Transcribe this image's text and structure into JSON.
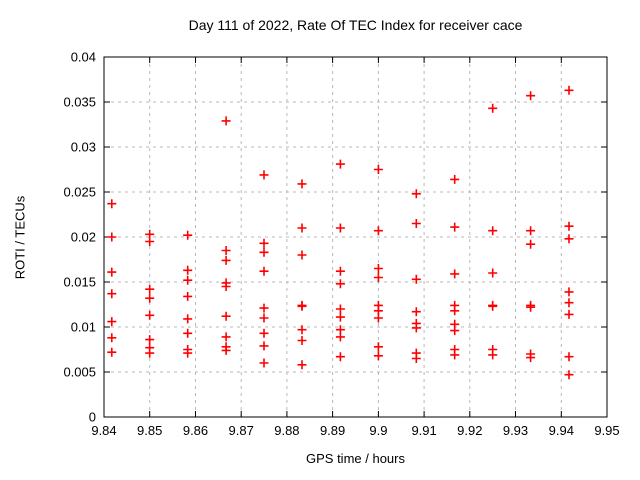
{
  "figure": {
    "background": "#ffffff"
  },
  "chart_data": {
    "type": "scatter",
    "title": "Day 111 of 2022, Rate Of TEC Index for receiver cace",
    "xlabel": "GPS time / hours",
    "ylabel": "ROTI / TECUs",
    "xlim": [
      9.84,
      9.95
    ],
    "ylim": [
      0,
      0.04
    ],
    "xticks": {
      "values": [
        9.84,
        9.85,
        9.86,
        9.87,
        9.88,
        9.89,
        9.9,
        9.91,
        9.92,
        9.93,
        9.94,
        9.95
      ],
      "labels": [
        "9.84",
        "9.85",
        "9.86",
        "9.87",
        "9.88",
        "9.89",
        "9.9",
        "9.91",
        "9.92",
        "9.93",
        "9.94",
        "9.95"
      ]
    },
    "yticks": {
      "values": [
        0,
        0.005,
        0.01,
        0.015,
        0.02,
        0.025,
        0.03,
        0.035,
        0.04
      ],
      "labels": [
        "0",
        "0.005",
        "0.01",
        "0.015",
        "0.02",
        "0.025",
        "0.03",
        "0.035",
        "0.04"
      ]
    },
    "grid": true,
    "grid_style": "dashed",
    "legend": "none",
    "grid_color": "#b8b8b8",
    "axis_color": "#000000",
    "marker": {
      "shape": "plus",
      "color": "#ff0000",
      "size": 9
    },
    "series": [
      {
        "name": "ROTI",
        "columns": [
          {
            "x": 9.8417,
            "values": [
              0.0237,
              0.02,
              0.0161,
              0.0137,
              0.0106,
              0.0088,
              0.0072
            ]
          },
          {
            "x": 9.85,
            "values": [
              0.0203,
              0.0195,
              0.0142,
              0.0132,
              0.0113,
              0.0086,
              0.0077,
              0.0071
            ]
          },
          {
            "x": 9.8583,
            "values": [
              0.0202,
              0.0163,
              0.0152,
              0.0134,
              0.0109,
              0.0093,
              0.0075,
              0.0071
            ]
          },
          {
            "x": 9.8667,
            "values": [
              0.0329,
              0.0185,
              0.0174,
              0.0149,
              0.0145,
              0.0112,
              0.0089,
              0.0078,
              0.0074
            ]
          },
          {
            "x": 9.875,
            "values": [
              0.0269,
              0.0193,
              0.0183,
              0.0162,
              0.0121,
              0.011,
              0.0093,
              0.0079,
              0.006
            ]
          },
          {
            "x": 9.8833,
            "values": [
              0.0259,
              0.021,
              0.018,
              0.0124,
              0.0123,
              0.0097,
              0.0085,
              0.0058
            ]
          },
          {
            "x": 9.8917,
            "values": [
              0.0281,
              0.021,
              0.0162,
              0.0148,
              0.012,
              0.0111,
              0.0097,
              0.0089,
              0.0067
            ]
          },
          {
            "x": 9.9,
            "values": [
              0.0275,
              0.0207,
              0.0165,
              0.0155,
              0.0124,
              0.0118,
              0.011,
              0.0078,
              0.0068
            ]
          },
          {
            "x": 9.9083,
            "values": [
              0.0248,
              0.0215,
              0.0153,
              0.0117,
              0.0104,
              0.0099,
              0.0071,
              0.0065
            ]
          },
          {
            "x": 9.9167,
            "values": [
              0.0264,
              0.0211,
              0.0159,
              0.0124,
              0.0118,
              0.0103,
              0.0096,
              0.0075,
              0.0069
            ]
          },
          {
            "x": 9.925,
            "values": [
              0.0343,
              0.0207,
              0.016,
              0.0124,
              0.0123,
              0.0075,
              0.0069
            ]
          },
          {
            "x": 9.9333,
            "values": [
              0.0357,
              0.0207,
              0.0192,
              0.0124,
              0.0122,
              0.007,
              0.0066
            ]
          },
          {
            "x": 9.9417,
            "values": [
              0.0363,
              0.0212,
              0.0198,
              0.0139,
              0.0127,
              0.0114,
              0.0067,
              0.0047
            ]
          }
        ]
      }
    ]
  }
}
